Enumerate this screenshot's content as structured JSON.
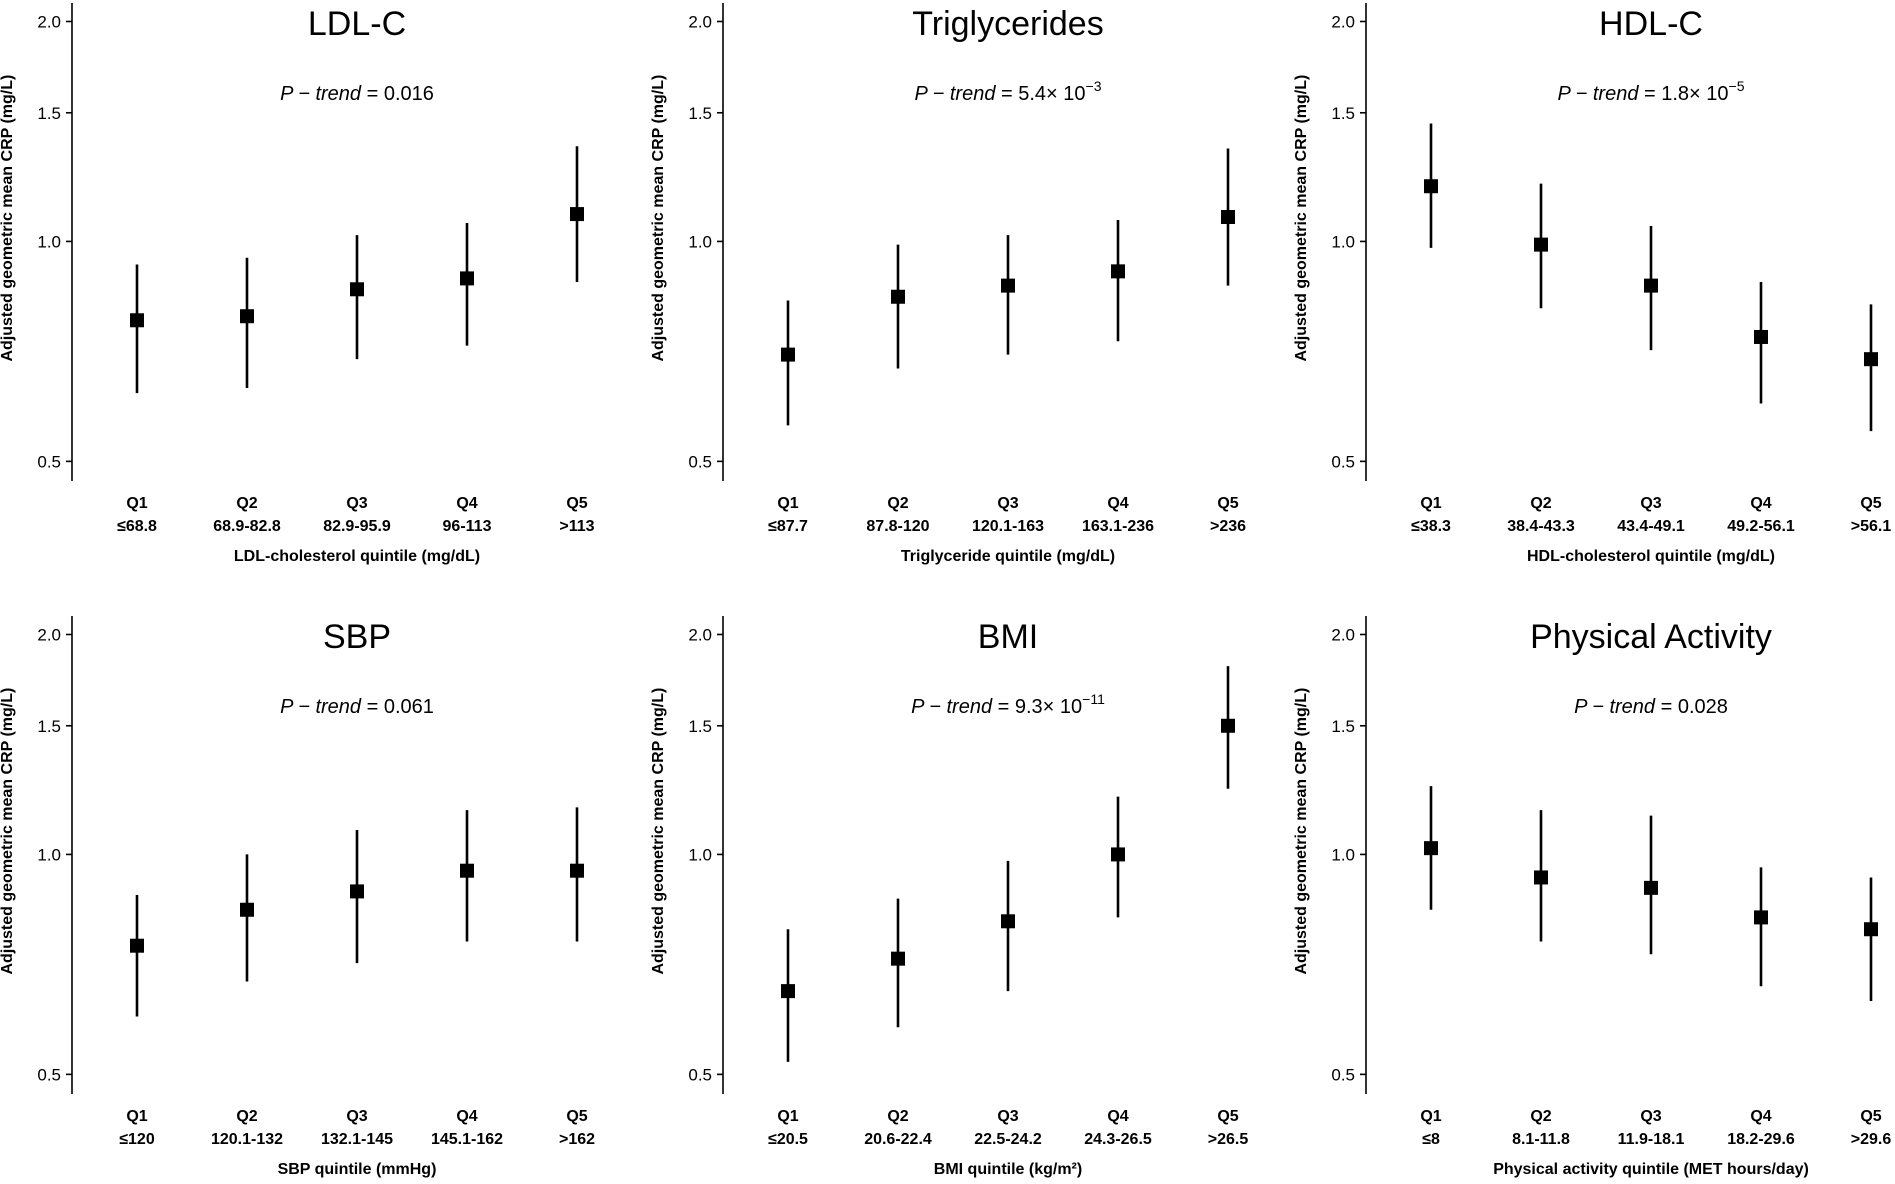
{
  "chart_data": [
    {
      "type": "scatter",
      "title": "LDL-C",
      "annotation": {
        "label": "P − trend",
        "equals": " = ",
        "value": "0.016"
      },
      "ylabel": "Adjusted geometric mean CRP (mg/L)",
      "xlabel": "LDL-cholesterol quintile (mg/dL)",
      "y_scale": "log",
      "ylim": [
        0.47,
        2.12
      ],
      "yticks": [
        0.5,
        1.0,
        1.5,
        2.0
      ],
      "ytick_labels": [
        "0.5",
        "1.0",
        "1.5",
        "2.0"
      ],
      "categories": [
        "Q1",
        "Q2",
        "Q3",
        "Q4",
        "Q5"
      ],
      "category_ranges": [
        "≤68.8",
        "68.9-82.8",
        "82.9-95.9",
        "96-113",
        ">113"
      ],
      "values": [
        0.78,
        0.79,
        0.86,
        0.89,
        1.09
      ],
      "lower": [
        0.62,
        0.63,
        0.69,
        0.72,
        0.88
      ],
      "upper": [
        0.93,
        0.95,
        1.02,
        1.06,
        1.35
      ],
      "grid": false
    },
    {
      "type": "scatter",
      "title": "Triglycerides",
      "annotation": {
        "label": "P − trend",
        "equals": " = ",
        "value": "5.4× 10",
        "exp": "−3"
      },
      "ylabel": "Adjusted geometric mean CRP (mg/L)",
      "xlabel": "Triglyceride quintile (mg/dL)",
      "y_scale": "log",
      "ylim": [
        0.47,
        2.12
      ],
      "yticks": [
        0.5,
        1.0,
        1.5,
        2.0
      ],
      "ytick_labels": [
        "0.5",
        "1.0",
        "1.5",
        "2.0"
      ],
      "categories": [
        "Q1",
        "Q2",
        "Q3",
        "Q4",
        "Q5"
      ],
      "category_ranges": [
        "≤87.7",
        "87.8-120",
        "120.1-163",
        "163.1-236",
        ">236"
      ],
      "values": [
        0.7,
        0.84,
        0.87,
        0.91,
        1.08
      ],
      "lower": [
        0.56,
        0.67,
        0.7,
        0.73,
        0.87
      ],
      "upper": [
        0.83,
        0.99,
        1.02,
        1.07,
        1.34
      ],
      "grid": false
    },
    {
      "type": "scatter",
      "title": "HDL-C",
      "annotation": {
        "label": "P − trend",
        "equals": " = ",
        "value": "1.8× 10",
        "exp": "−5"
      },
      "ylabel": "Adjusted geometric mean CRP (mg/L)",
      "xlabel": "HDL-cholesterol quintile (mg/dL)",
      "y_scale": "log",
      "ylim": [
        0.47,
        2.12
      ],
      "yticks": [
        0.5,
        1.0,
        1.5,
        2.0
      ],
      "ytick_labels": [
        "0.5",
        "1.0",
        "1.5",
        "2.0"
      ],
      "categories": [
        "Q1",
        "Q2",
        "Q3",
        "Q4",
        "Q5"
      ],
      "category_ranges": [
        "≤38.3",
        "38.4-43.3",
        "43.4-49.1",
        "49.2-56.1",
        ">56.1"
      ],
      "values": [
        1.19,
        0.99,
        0.87,
        0.74,
        0.69
      ],
      "lower": [
        0.98,
        0.81,
        0.71,
        0.6,
        0.55
      ],
      "upper": [
        1.45,
        1.2,
        1.05,
        0.88,
        0.82
      ],
      "grid": false
    },
    {
      "type": "scatter",
      "title": "SBP",
      "annotation": {
        "label": "P − trend",
        "equals": " = ",
        "value": "0.061"
      },
      "ylabel": "Adjusted geometric mean CRP (mg/L)",
      "xlabel": "SBP quintile (mmHg)",
      "y_scale": "log",
      "ylim": [
        0.47,
        2.12
      ],
      "yticks": [
        0.5,
        1.0,
        1.5,
        2.0
      ],
      "ytick_labels": [
        "0.5",
        "1.0",
        "1.5",
        "2.0"
      ],
      "categories": [
        "Q1",
        "Q2",
        "Q3",
        "Q4",
        "Q5"
      ],
      "category_ranges": [
        "≤120",
        "120.1-132",
        "132.1-145",
        "145.1-162",
        ">162"
      ],
      "values": [
        0.75,
        0.84,
        0.89,
        0.95,
        0.95
      ],
      "lower": [
        0.6,
        0.67,
        0.71,
        0.76,
        0.76
      ],
      "upper": [
        0.88,
        1.0,
        1.08,
        1.15,
        1.16
      ],
      "grid": false
    },
    {
      "type": "scatter",
      "title": "BMI",
      "annotation": {
        "label": "P − trend",
        "equals": " = ",
        "value": "9.3× 10",
        "exp": "−11"
      },
      "ylabel": "Adjusted geometric mean CRP (mg/L)",
      "xlabel": "BMI quintile (kg/m²)",
      "y_scale": "log",
      "ylim": [
        0.47,
        2.12
      ],
      "yticks": [
        0.5,
        1.0,
        1.5,
        2.0
      ],
      "ytick_labels": [
        "0.5",
        "1.0",
        "1.5",
        "2.0"
      ],
      "categories": [
        "Q1",
        "Q2",
        "Q3",
        "Q4",
        "Q5"
      ],
      "category_ranges": [
        "≤20.5",
        "20.6-22.4",
        "22.5-24.2",
        "24.3-26.5",
        ">26.5"
      ],
      "values": [
        0.65,
        0.72,
        0.81,
        1.0,
        1.5
      ],
      "lower": [
        0.52,
        0.58,
        0.65,
        0.82,
        1.23
      ],
      "upper": [
        0.79,
        0.87,
        0.98,
        1.2,
        1.81
      ],
      "grid": false
    },
    {
      "type": "scatter",
      "title": "Physical Activity",
      "annotation": {
        "label": "P − trend",
        "equals": " = ",
        "value": "0.028"
      },
      "ylabel": "Adjusted geometric mean CRP (mg/L)",
      "xlabel": "Physical activity quintile (MET hours/day)",
      "y_scale": "log",
      "ylim": [
        0.47,
        2.12
      ],
      "yticks": [
        0.5,
        1.0,
        1.5,
        2.0
      ],
      "ytick_labels": [
        "0.5",
        "1.0",
        "1.5",
        "2.0"
      ],
      "categories": [
        "Q1",
        "Q2",
        "Q3",
        "Q4",
        "Q5"
      ],
      "category_ranges": [
        "≤8",
        "8.1-11.8",
        "11.9-18.1",
        "18.2-29.6",
        ">29.6"
      ],
      "values": [
        1.02,
        0.93,
        0.9,
        0.82,
        0.79
      ],
      "lower": [
        0.84,
        0.76,
        0.73,
        0.66,
        0.63
      ],
      "upper": [
        1.24,
        1.15,
        1.13,
        0.96,
        0.93
      ],
      "grid": false
    }
  ]
}
